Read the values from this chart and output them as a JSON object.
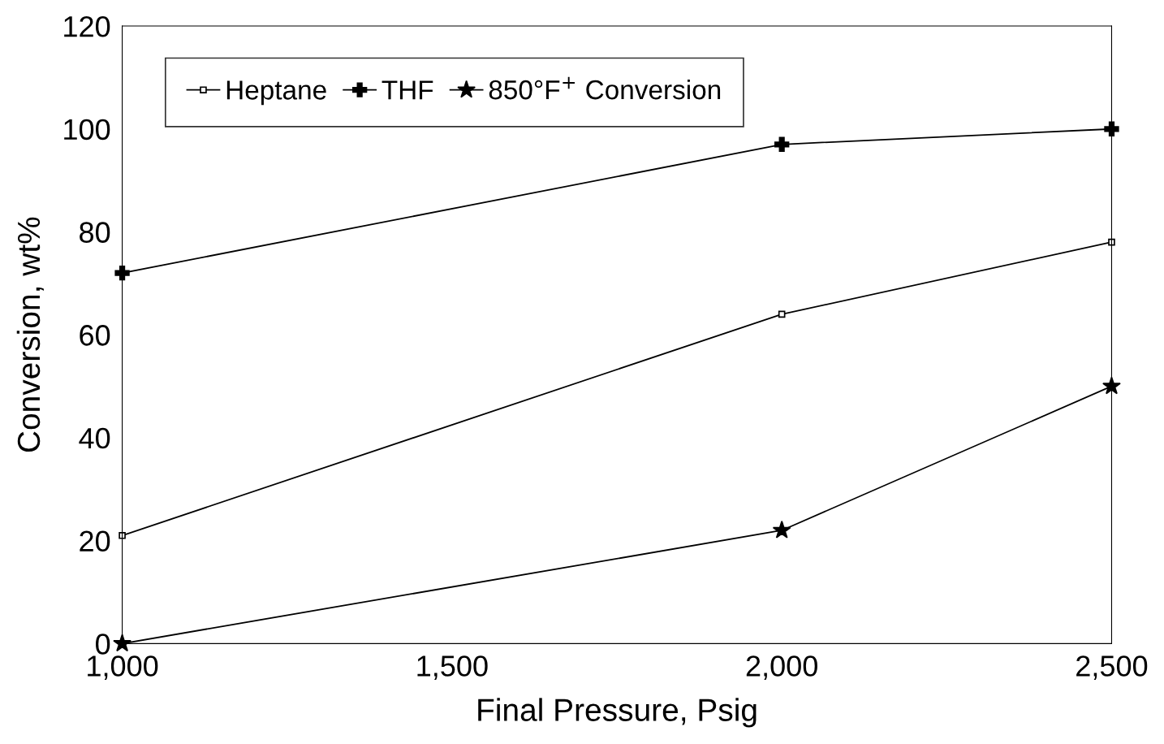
{
  "chart_data": {
    "type": "line",
    "xlabel": "Final Pressure, Psig",
    "ylabel": "Conversion, wt%",
    "x": [
      1000,
      2000,
      2500
    ],
    "series": [
      {
        "name": "Heptane",
        "color": "#000000",
        "marker": "square",
        "values": [
          21,
          64,
          78
        ]
      },
      {
        "name": "THF",
        "color": "#000000",
        "marker": "cross",
        "values": [
          72,
          97,
          100
        ]
      },
      {
        "name": "850°F$^{+}$ Conversion",
        "color": "#000000",
        "marker": "star",
        "values": [
          0,
          22,
          50
        ]
      }
    ],
    "xlim": [
      1000,
      2500
    ],
    "ylim": [
      0,
      120
    ],
    "xticks": [
      {
        "value": 1000,
        "label": "1,000"
      },
      {
        "value": 1500,
        "label": "1,500"
      },
      {
        "value": 2000,
        "label": "2,000"
      },
      {
        "value": 2500,
        "label": "2,500"
      }
    ],
    "yticks": [
      0,
      20,
      40,
      60,
      80,
      100,
      120
    ],
    "grid": false,
    "legend": "top left",
    "line_style": "solid"
  }
}
